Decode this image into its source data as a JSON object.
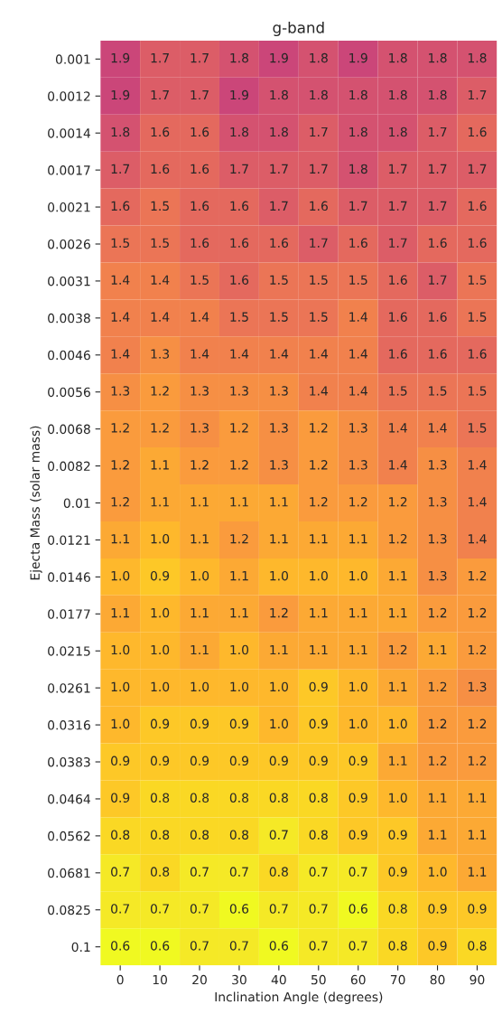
{
  "chart_data": {
    "type": "heatmap",
    "title": "g-band",
    "xlabel": "Inclination Angle (degrees)",
    "ylabel": "Ejecta Mass (solar mass)",
    "categories": [
      "0",
      "10",
      "20",
      "30",
      "40",
      "50",
      "60",
      "70",
      "80",
      "90"
    ],
    "y_categories": [
      "0.001",
      "0.0012",
      "0.0014",
      "0.0017",
      "0.0021",
      "0.0026",
      "0.0031",
      "0.0038",
      "0.0046",
      "0.0056",
      "0.0068",
      "0.0082",
      "0.01",
      "0.0121",
      "0.0146",
      "0.0177",
      "0.0215",
      "0.0261",
      "0.0316",
      "0.0383",
      "0.0464",
      "0.0562",
      "0.0681",
      "0.0825",
      "0.1"
    ],
    "cells": [
      [
        1.9,
        1.7,
        1.7,
        1.8,
        1.9,
        1.8,
        1.9,
        1.8,
        1.8,
        1.8
      ],
      [
        1.9,
        1.7,
        1.7,
        1.9,
        1.8,
        1.8,
        1.8,
        1.8,
        1.8,
        1.7
      ],
      [
        1.8,
        1.6,
        1.6,
        1.8,
        1.8,
        1.7,
        1.8,
        1.8,
        1.7,
        1.6
      ],
      [
        1.7,
        1.6,
        1.6,
        1.7,
        1.7,
        1.7,
        1.8,
        1.7,
        1.7,
        1.7
      ],
      [
        1.6,
        1.5,
        1.6,
        1.6,
        1.7,
        1.6,
        1.7,
        1.7,
        1.7,
        1.6
      ],
      [
        1.5,
        1.5,
        1.6,
        1.6,
        1.6,
        1.7,
        1.6,
        1.7,
        1.6,
        1.6
      ],
      [
        1.4,
        1.4,
        1.5,
        1.6,
        1.5,
        1.5,
        1.5,
        1.6,
        1.7,
        1.5
      ],
      [
        1.4,
        1.4,
        1.4,
        1.5,
        1.5,
        1.5,
        1.4,
        1.6,
        1.6,
        1.5
      ],
      [
        1.4,
        1.3,
        1.4,
        1.4,
        1.4,
        1.4,
        1.4,
        1.6,
        1.6,
        1.6
      ],
      [
        1.3,
        1.2,
        1.3,
        1.3,
        1.3,
        1.4,
        1.4,
        1.5,
        1.5,
        1.5
      ],
      [
        1.2,
        1.2,
        1.3,
        1.2,
        1.3,
        1.2,
        1.3,
        1.4,
        1.4,
        1.5
      ],
      [
        1.2,
        1.1,
        1.2,
        1.2,
        1.3,
        1.2,
        1.3,
        1.4,
        1.3,
        1.4
      ],
      [
        1.2,
        1.1,
        1.1,
        1.1,
        1.1,
        1.2,
        1.2,
        1.2,
        1.3,
        1.4
      ],
      [
        1.1,
        1.0,
        1.1,
        1.2,
        1.1,
        1.1,
        1.1,
        1.2,
        1.3,
        1.4
      ],
      [
        1.0,
        0.9,
        1.0,
        1.1,
        1.0,
        1.0,
        1.0,
        1.1,
        1.3,
        1.2
      ],
      [
        1.1,
        1.0,
        1.1,
        1.1,
        1.2,
        1.1,
        1.1,
        1.1,
        1.2,
        1.2
      ],
      [
        1.0,
        1.0,
        1.1,
        1.0,
        1.1,
        1.1,
        1.1,
        1.2,
        1.1,
        1.2
      ],
      [
        1.0,
        1.0,
        1.0,
        1.0,
        1.0,
        0.9,
        1.0,
        1.1,
        1.2,
        1.3
      ],
      [
        1.0,
        0.9,
        0.9,
        0.9,
        1.0,
        0.9,
        1.0,
        1.0,
        1.2,
        1.2
      ],
      [
        0.9,
        0.9,
        0.9,
        0.9,
        0.9,
        0.9,
        0.9,
        1.1,
        1.2,
        1.2
      ],
      [
        0.9,
        0.8,
        0.8,
        0.8,
        0.8,
        0.8,
        0.9,
        1.0,
        1.1,
        1.1
      ],
      [
        0.8,
        0.8,
        0.8,
        0.8,
        0.7,
        0.8,
        0.9,
        0.9,
        1.1,
        1.1
      ],
      [
        0.7,
        0.8,
        0.7,
        0.7,
        0.8,
        0.7,
        0.7,
        0.9,
        1.0,
        1.1
      ],
      [
        0.7,
        0.7,
        0.7,
        0.6,
        0.7,
        0.7,
        0.6,
        0.8,
        0.9,
        0.9
      ],
      [
        0.6,
        0.6,
        0.7,
        0.7,
        0.6,
        0.7,
        0.7,
        0.8,
        0.9,
        0.8
      ]
    ],
    "cell_labels": [
      [
        "1.9",
        "1.7",
        "1.7",
        "1.8",
        "1.9",
        "1.8",
        "1.9",
        "1.8",
        "1.8",
        "1.8"
      ],
      [
        "1.9",
        "1.7",
        "1.7",
        "1.9",
        "1.8",
        "1.8",
        "1.8",
        "1.8",
        "1.8",
        "1.7"
      ],
      [
        "1.8",
        "1.6",
        "1.6",
        "1.8",
        "1.8",
        "1.7",
        "1.8",
        "1.8",
        "1.7",
        "1.6"
      ],
      [
        "1.7",
        "1.6",
        "1.6",
        "1.7",
        "1.7",
        "1.7",
        "1.8",
        "1.7",
        "1.7",
        "1.7"
      ],
      [
        "1.6",
        "1.5",
        "1.6",
        "1.6",
        "1.7",
        "1.6",
        "1.7",
        "1.7",
        "1.7",
        "1.6"
      ],
      [
        "1.5",
        "1.5",
        "1.6",
        "1.6",
        "1.6",
        "1.7",
        "1.6",
        "1.7",
        "1.6",
        "1.6"
      ],
      [
        "1.4",
        "1.4",
        "1.5",
        "1.6",
        "1.5",
        "1.5",
        "1.5",
        "1.6",
        "1.7",
        "1.5"
      ],
      [
        "1.4",
        "1.4",
        "1.4",
        "1.5",
        "1.5",
        "1.5",
        "1.4",
        "1.6",
        "1.6",
        "1.5"
      ],
      [
        "1.4",
        "1.3",
        "1.4",
        "1.4",
        "1.4",
        "1.4",
        "1.4",
        "1.6",
        "1.6",
        "1.6"
      ],
      [
        "1.3",
        "1.2",
        "1.3",
        "1.3",
        "1.3",
        "1.4",
        "1.4",
        "1.5",
        "1.5",
        "1.5"
      ],
      [
        "1.2",
        "1.2",
        "1.3",
        "1.2",
        "1.3",
        "1.2",
        "1.3",
        "1.4",
        "1.4",
        "1.5"
      ],
      [
        "1.2",
        "1.1",
        "1.2",
        "1.2",
        "1.3",
        "1.2",
        "1.3",
        "1.4",
        "1.3",
        "1.4"
      ],
      [
        "1.2",
        "1.1",
        "1.1",
        "1.1",
        "1.1",
        "1.2",
        "1.2",
        "1.2",
        "1.3",
        "1.4"
      ],
      [
        "1.1",
        "1.0",
        "1.1",
        "1.2",
        "1.1",
        "1.1",
        "1.1",
        "1.2",
        "1.3",
        "1.4"
      ],
      [
        "1.0",
        "0.9",
        "1.0",
        "1.1",
        "1.0",
        "1.0",
        "1.0",
        "1.1",
        "1.3",
        "1.2"
      ],
      [
        "1.1",
        "1.0",
        "1.1",
        "1.1",
        "1.2",
        "1.1",
        "1.1",
        "1.1",
        "1.2",
        "1.2"
      ],
      [
        "1.0",
        "1.0",
        "1.1",
        "1.0",
        "1.1",
        "1.1",
        "1.1",
        "1.2",
        "1.1",
        "1.2"
      ],
      [
        "1.0",
        "1.0",
        "1.0",
        "1.0",
        "1.0",
        "0.9",
        "1.0",
        "1.1",
        "1.2",
        "1.3"
      ],
      [
        "1.0",
        "0.9",
        "0.9",
        "0.9",
        "1.0",
        "0.9",
        "1.0",
        "1.0",
        "1.2",
        "1.2"
      ],
      [
        "0.9",
        "0.9",
        "0.9",
        "0.9",
        "0.9",
        "0.9",
        "0.9",
        "1.1",
        "1.2",
        "1.2"
      ],
      [
        "0.9",
        "0.8",
        "0.8",
        "0.8",
        "0.8",
        "0.8",
        "0.9",
        "1.0",
        "1.1",
        "1.1"
      ],
      [
        "0.8",
        "0.8",
        "0.8",
        "0.8",
        "0.7",
        "0.8",
        "0.9",
        "0.9",
        "1.1",
        "1.1"
      ],
      [
        "0.7",
        "0.8",
        "0.7",
        "0.7",
        "0.8",
        "0.7",
        "0.7",
        "0.9",
        "1.0",
        "1.1"
      ],
      [
        "0.7",
        "0.7",
        "0.7",
        "0.6",
        "0.7",
        "0.7",
        "0.6",
        "0.8",
        "0.9",
        "0.9"
      ],
      [
        "0.6",
        "0.6",
        "0.7",
        "0.7",
        "0.6",
        "0.7",
        "0.7",
        "0.8",
        "0.9",
        "0.8"
      ]
    ]
  }
}
